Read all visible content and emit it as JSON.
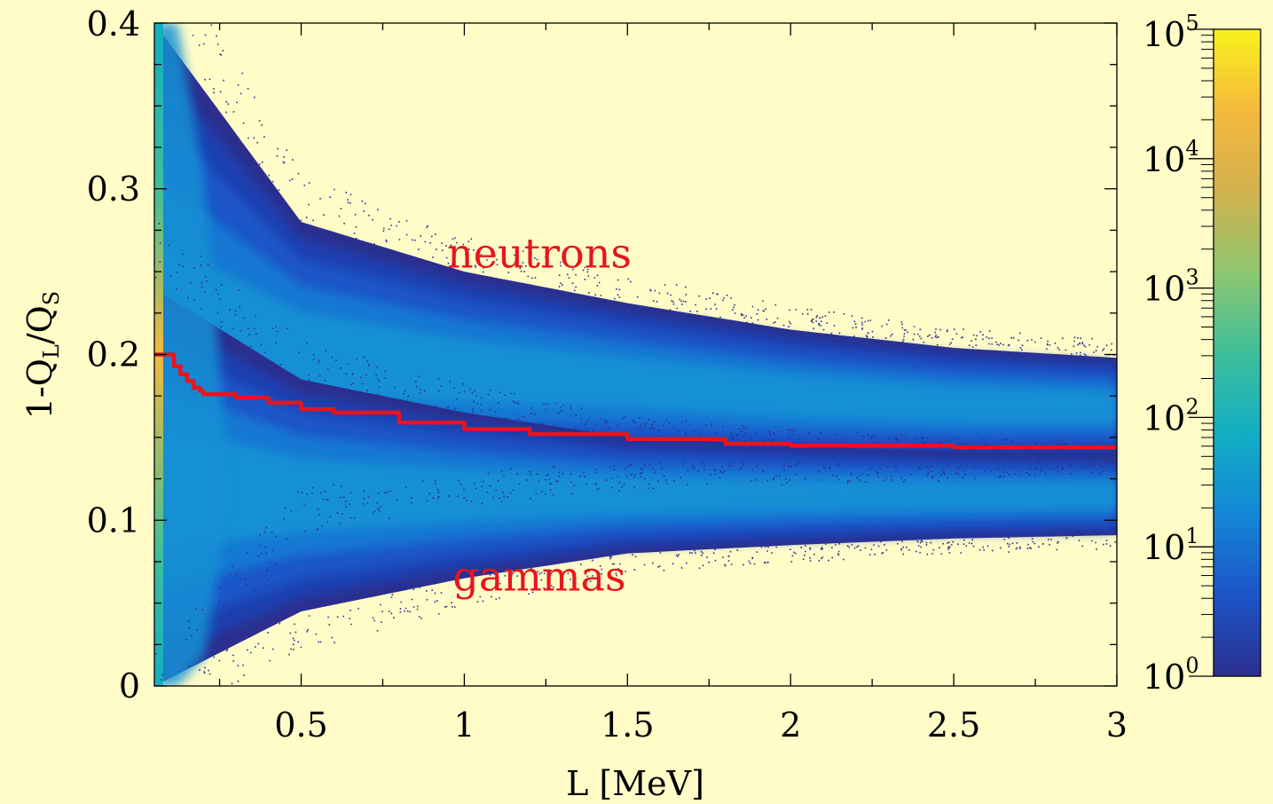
{
  "chart_data": {
    "type": "heatmap",
    "title": "",
    "xlabel": "L [MeV]",
    "ylabel": {
      "base": "1-Q",
      "sub1": "L",
      "mid": "/Q",
      "sub2": "S"
    },
    "xlim": [
      0.05,
      3.0
    ],
    "ylim": [
      0.0,
      0.4
    ],
    "x_ticks": [
      {
        "value": 0.5,
        "label": "0.5"
      },
      {
        "value": 1,
        "label": "1"
      },
      {
        "value": 1.5,
        "label": "1.5"
      },
      {
        "value": 2,
        "label": "2"
      },
      {
        "value": 2.5,
        "label": "2.5"
      },
      {
        "value": 3,
        "label": "3"
      }
    ],
    "y_ticks": [
      {
        "value": 0,
        "label": "0"
      },
      {
        "value": 0.1,
        "label": "0.1"
      },
      {
        "value": 0.2,
        "label": "0.2"
      },
      {
        "value": 0.3,
        "label": "0.3"
      },
      {
        "value": 0.4,
        "label": "0.4"
      }
    ],
    "colorbar": {
      "scale": "log",
      "range": [
        1,
        100000
      ],
      "ticks": [
        {
          "value": 1,
          "base": "10",
          "exp": "0"
        },
        {
          "value": 10,
          "base": "10",
          "exp": "1"
        },
        {
          "value": 100,
          "base": "10",
          "exp": "2"
        },
        {
          "value": 1000,
          "base": "10",
          "exp": "3"
        },
        {
          "value": 10000,
          "base": "10",
          "exp": "4"
        },
        {
          "value": 100000,
          "base": "10",
          "exp": "5"
        }
      ],
      "colors": [
        "#2c2f8e",
        "#1d54c8",
        "#1387d6",
        "#12aec4",
        "#3fbf9a",
        "#8fc670",
        "#d3b14e",
        "#f5b93d",
        "#f8f21c"
      ]
    },
    "bands": [
      {
        "name": "neutron band",
        "center": [
          [
            0.05,
            0.21
          ],
          [
            0.5,
            0.2
          ],
          [
            1.0,
            0.19
          ],
          [
            1.5,
            0.183
          ],
          [
            2.0,
            0.175
          ],
          [
            2.5,
            0.17
          ],
          [
            3.0,
            0.168
          ]
        ],
        "halfwidth": [
          [
            0.05,
            0.19
          ],
          [
            0.5,
            0.08
          ],
          [
            1.0,
            0.06
          ],
          [
            1.5,
            0.048
          ],
          [
            2.0,
            0.04
          ],
          [
            2.5,
            0.034
          ],
          [
            3.0,
            0.03
          ]
        ]
      },
      {
        "name": "gamma band",
        "center": [
          [
            0.05,
            0.12
          ],
          [
            0.5,
            0.115
          ],
          [
            1.0,
            0.115
          ],
          [
            1.5,
            0.115
          ],
          [
            2.0,
            0.115
          ],
          [
            2.5,
            0.115
          ],
          [
            3.0,
            0.115
          ]
        ],
        "halfwidth": [
          [
            0.05,
            0.12
          ],
          [
            0.5,
            0.07
          ],
          [
            1.0,
            0.05
          ],
          [
            1.5,
            0.035
          ],
          [
            2.0,
            0.03
          ],
          [
            2.5,
            0.026
          ],
          [
            3.0,
            0.024
          ]
        ]
      }
    ],
    "cut_line": {
      "color": "#e8141e",
      "points": [
        [
          0.05,
          0.2
        ],
        [
          0.1,
          0.2
        ],
        [
          0.11,
          0.193
        ],
        [
          0.13,
          0.188
        ],
        [
          0.15,
          0.184
        ],
        [
          0.17,
          0.18
        ],
        [
          0.19,
          0.178
        ],
        [
          0.2,
          0.176
        ],
        [
          0.3,
          0.174
        ],
        [
          0.4,
          0.171
        ],
        [
          0.5,
          0.167
        ],
        [
          0.6,
          0.165
        ],
        [
          0.8,
          0.159
        ],
        [
          1.0,
          0.155
        ],
        [
          1.2,
          0.152
        ],
        [
          1.5,
          0.149
        ],
        [
          1.8,
          0.146
        ],
        [
          2.0,
          0.145
        ],
        [
          2.5,
          0.144
        ],
        [
          3.0,
          0.144
        ]
      ]
    },
    "annotations": [
      {
        "text": "neutrons",
        "x": 1.23,
        "y": 0.26,
        "color": "#e8141e"
      },
      {
        "text": "gammas",
        "x": 1.23,
        "y": 0.065,
        "color": "#e8141e"
      }
    ]
  }
}
